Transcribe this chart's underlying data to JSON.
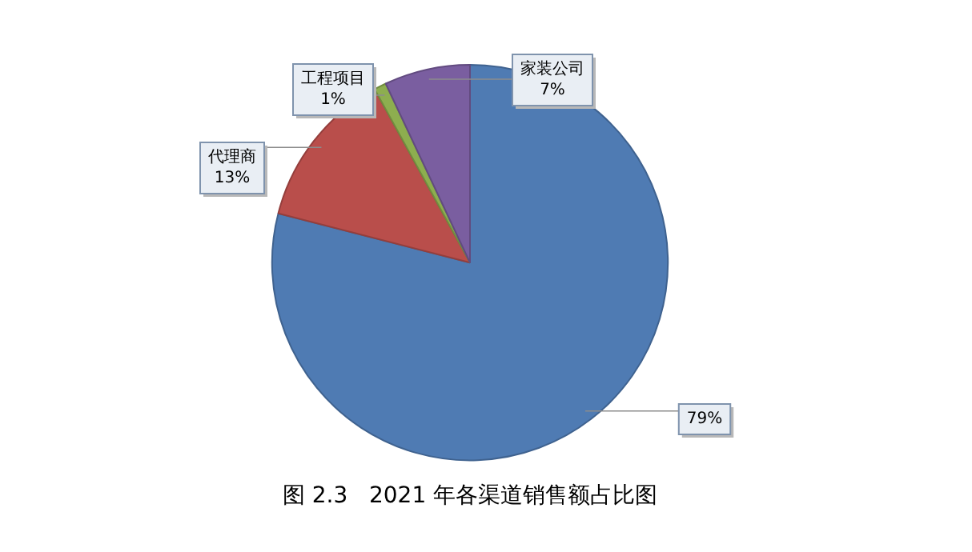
{
  "chart_data": {
    "type": "pie",
    "title": "图 2.3   2021 年各渠道销售额占比图",
    "categories": [
      null,
      "代理商",
      "工程项目",
      "家装公司"
    ],
    "values": [
      79,
      13,
      1,
      7
    ],
    "value_labels": [
      "79%",
      "13%",
      "1%",
      "7%"
    ],
    "colors": [
      "#4f7bb3",
      "#b94e4b",
      "#8dae4f",
      "#7a5ea0"
    ],
    "legend": false
  }
}
